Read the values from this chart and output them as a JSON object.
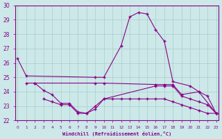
{
  "xlabel": "Windchill (Refroidissement éolien,°C)",
  "background_color": "#cce8e8",
  "line_color": "#880088",
  "grid_color": "#aacccc",
  "hours": [
    0,
    1,
    2,
    3,
    4,
    5,
    6,
    7,
    8,
    9,
    10,
    11,
    12,
    13,
    14,
    15,
    16,
    17,
    18,
    19,
    20,
    21,
    22,
    23
  ],
  "curve1_x": [
    0,
    1,
    9,
    10,
    12,
    13,
    14,
    15,
    16,
    17,
    18,
    20,
    21,
    23
  ],
  "curve1_y": [
    26.3,
    25.1,
    25.0,
    25.0,
    27.2,
    29.2,
    29.5,
    29.4,
    28.3,
    27.5,
    24.7,
    24.4,
    24.0,
    22.5
  ],
  "curve2_x": [
    1,
    2,
    9,
    10,
    16,
    17,
    18,
    19,
    21,
    22,
    23
  ],
  "curve2_y": [
    24.6,
    24.6,
    24.6,
    24.6,
    24.5,
    24.5,
    24.5,
    23.8,
    24.0,
    23.7,
    22.5
  ],
  "curve3_x": [
    2,
    3,
    4,
    5,
    6,
    7,
    8,
    9,
    10,
    16,
    17,
    18,
    19,
    20,
    21,
    22,
    23
  ],
  "curve3_y": [
    24.6,
    24.1,
    23.8,
    23.2,
    23.2,
    22.6,
    22.5,
    22.8,
    23.5,
    24.4,
    24.4,
    24.4,
    23.7,
    23.5,
    23.3,
    23.1,
    22.5
  ],
  "curve4_x": [
    3,
    4,
    5,
    6,
    7,
    8,
    9,
    10,
    11,
    12,
    13,
    14,
    15,
    16,
    17,
    18,
    19,
    20,
    21,
    22,
    23
  ],
  "curve4_y": [
    23.5,
    23.3,
    23.1,
    23.1,
    22.5,
    22.5,
    23.0,
    23.5,
    23.5,
    23.5,
    23.5,
    23.5,
    23.5,
    23.5,
    23.5,
    23.3,
    23.1,
    22.9,
    22.7,
    22.5,
    22.5
  ],
  "xlim": [
    -0.3,
    23.3
  ],
  "ylim": [
    22,
    30
  ],
  "yticks": [
    22,
    23,
    24,
    25,
    26,
    27,
    28,
    29,
    30
  ],
  "xticks": [
    0,
    1,
    2,
    3,
    4,
    5,
    6,
    7,
    8,
    9,
    10,
    11,
    12,
    13,
    14,
    15,
    16,
    17,
    18,
    19,
    20,
    21,
    22,
    23
  ]
}
